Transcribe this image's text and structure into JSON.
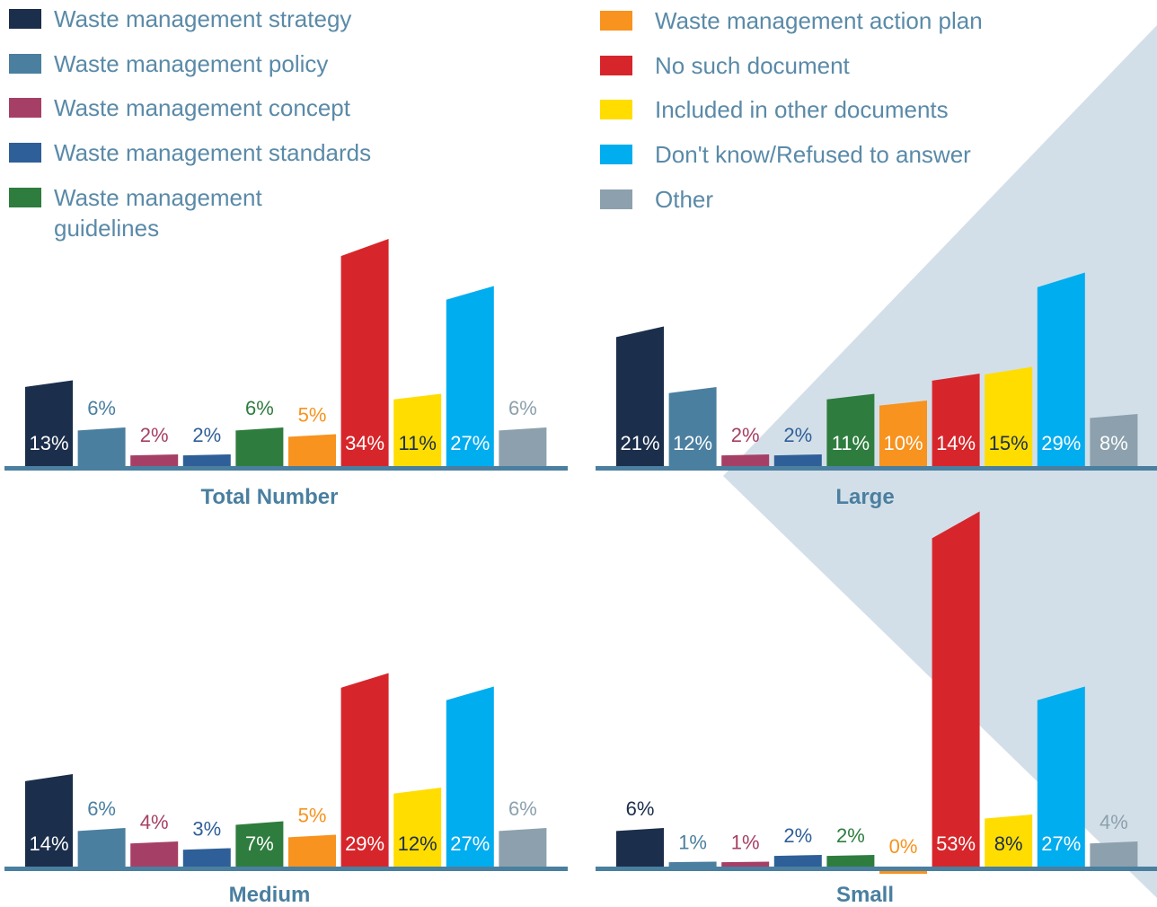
{
  "legend": [
    {
      "name": "Waste management strategy",
      "color": "#1b2e4b"
    },
    {
      "name": "Waste management policy",
      "color": "#4a7fa0"
    },
    {
      "name": "Waste management concept",
      "color": "#a63f65"
    },
    {
      "name": "Waste management standards",
      "color": "#2f5f98"
    },
    {
      "name": "Waste management guidelines",
      "color": "#2e7d3e"
    },
    {
      "name": "Waste management action plan",
      "color": "#f7931e"
    },
    {
      "name": "No such document",
      "color": "#d7262b"
    },
    {
      "name": "Included in other documents",
      "color": "#ffdd00"
    },
    {
      "name": "Don't know/Refused to answer",
      "color": "#00adef"
    },
    {
      "name": "Other",
      "color": "#8ca1ad"
    }
  ],
  "chart_data": [
    {
      "type": "bar",
      "title": "Total Number",
      "values": [
        13,
        6,
        2,
        2,
        6,
        5,
        34,
        11,
        27,
        6
      ],
      "value_labels": [
        "13%",
        "6%",
        "2%",
        "2%",
        "6%",
        "5%",
        "34%",
        "11%",
        "27%",
        "6%"
      ]
    },
    {
      "type": "bar",
      "title": "Large",
      "values": [
        21,
        12,
        2,
        2,
        11,
        10,
        14,
        15,
        29,
        8
      ],
      "value_labels": [
        "21%",
        "12%",
        "2%",
        "2%",
        "11%",
        "10%",
        "14%",
        "15%",
        "29%",
        "8%"
      ]
    },
    {
      "type": "bar",
      "title": "Medium",
      "values": [
        14,
        6,
        4,
        3,
        7,
        5,
        29,
        12,
        27,
        6
      ],
      "value_labels": [
        "14%",
        "6%",
        "4%",
        "3%",
        "7%",
        "5%",
        "29%",
        "12%",
        "27%",
        "6%"
      ]
    },
    {
      "type": "bar",
      "title": "Small",
      "values": [
        6,
        1,
        1,
        2,
        2,
        0,
        53,
        8,
        27,
        4
      ],
      "value_labels": [
        "6%",
        "1%",
        "1%",
        "2%",
        "2%",
        "0%",
        "53%",
        "8%",
        "27%",
        "4%"
      ]
    }
  ]
}
